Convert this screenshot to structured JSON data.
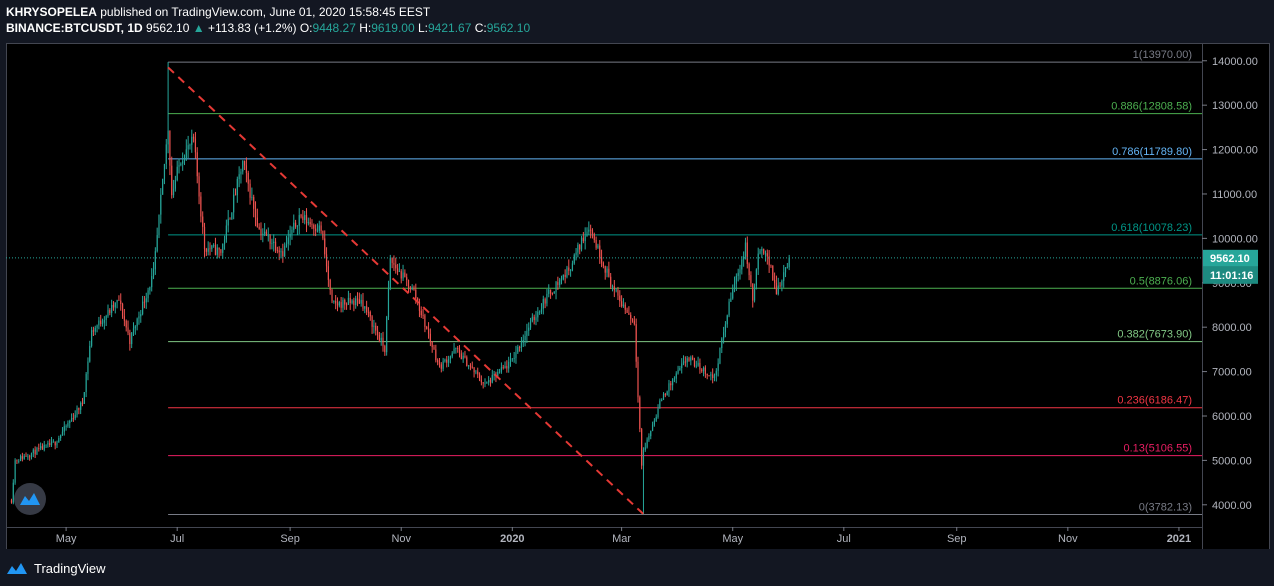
{
  "header": {
    "author": "KHRYSOPELEA",
    "published_text": "published on TradingView.com, June 01, 2020 15:58:45 EEST",
    "symbol": "BINANCE:BTCUSDT, 1D",
    "last_price": "9562.10",
    "change_arrow": "▲",
    "change": "+113.83 (+1.2%)",
    "o_label": "O:",
    "o_value": "9448.27",
    "h_label": "H:",
    "h_value": "9619.00",
    "l_label": "L:",
    "l_value": "9421.67",
    "c_label": "C:",
    "c_value": "9562.10"
  },
  "footer": {
    "brand": "TradingView",
    "logo_icon": "tradingview-logo-icon"
  },
  "colors": {
    "up": "#26a69a",
    "down": "#ef5350",
    "trendline": "#e53935",
    "background": "#000000"
  },
  "chart_data": {
    "type": "candlestick",
    "symbol": "BINANCE:BTCUSDT",
    "interval": "1D",
    "y_axis": {
      "ylim": [
        3500,
        14400
      ],
      "ticks": [
        "4000.00",
        "5000.00",
        "6000.00",
        "7000.00",
        "8000.00",
        "9000.00",
        "10000.00",
        "11000.00",
        "12000.00",
        "13000.00",
        "14000.00"
      ]
    },
    "x_axis": {
      "ticks": [
        {
          "label": "May",
          "date": "2019-05-01"
        },
        {
          "label": "Jul",
          "date": "2019-07-01"
        },
        {
          "label": "Sep",
          "date": "2019-09-01"
        },
        {
          "label": "Nov",
          "date": "2019-11-01"
        },
        {
          "label": "2020",
          "date": "2020-01-01",
          "bold": true
        },
        {
          "label": "Mar",
          "date": "2020-03-01"
        },
        {
          "label": "May",
          "date": "2020-05-01"
        },
        {
          "label": "Jul",
          "date": "2020-07-01"
        },
        {
          "label": "Sep",
          "date": "2020-09-01"
        },
        {
          "label": "Nov",
          "date": "2020-11-01"
        },
        {
          "label": "2021",
          "date": "2021-01-01",
          "bold": true
        }
      ],
      "xlim": [
        "2019-03-29",
        "2021-02-20"
      ]
    },
    "price_path": [
      [
        "2019-04-01",
        4100
      ],
      [
        "2019-04-03",
        5000
      ],
      [
        "2019-04-25",
        5400
      ],
      [
        "2019-05-10",
        6300
      ],
      [
        "2019-05-15",
        7900
      ],
      [
        "2019-05-30",
        8600
      ],
      [
        "2019-06-05",
        7700
      ],
      [
        "2019-06-18",
        9200
      ],
      [
        "2019-06-26",
        12500
      ],
      [
        "2019-06-28",
        11000
      ],
      [
        "2019-07-03",
        11800
      ],
      [
        "2019-07-10",
        12200
      ],
      [
        "2019-07-16",
        9800
      ],
      [
        "2019-07-25",
        9700
      ],
      [
        "2019-08-06",
        11700
      ],
      [
        "2019-08-15",
        10200
      ],
      [
        "2019-08-28",
        9700
      ],
      [
        "2019-09-06",
        10500
      ],
      [
        "2019-09-18",
        10200
      ],
      [
        "2019-09-24",
        8500
      ],
      [
        "2019-10-10",
        8600
      ],
      [
        "2019-10-23",
        7500
      ],
      [
        "2019-10-26",
        9500
      ],
      [
        "2019-11-08",
        8800
      ],
      [
        "2019-11-22",
        7100
      ],
      [
        "2019-12-01",
        7500
      ],
      [
        "2019-12-17",
        6700
      ],
      [
        "2019-12-31",
        7200
      ],
      [
        "2020-01-10",
        8000
      ],
      [
        "2020-01-20",
        8700
      ],
      [
        "2020-02-01",
        9300
      ],
      [
        "2020-02-12",
        10300
      ],
      [
        "2020-02-26",
        8800
      ],
      [
        "2020-03-08",
        8100
      ],
      [
        "2020-03-12",
        4900
      ],
      [
        "2020-03-13",
        5200
      ],
      [
        "2020-03-23",
        6400
      ],
      [
        "2020-04-06",
        7300
      ],
      [
        "2020-04-21",
        6850
      ],
      [
        "2020-04-30",
        8700
      ],
      [
        "2020-05-08",
        9800
      ],
      [
        "2020-05-12",
        8600
      ],
      [
        "2020-05-15",
        9600
      ],
      [
        "2020-05-19",
        9750
      ],
      [
        "2020-05-25",
        8800
      ],
      [
        "2020-06-01",
        9562
      ]
    ],
    "price_extremes": [
      {
        "date": "2019-06-26",
        "high": 13970
      },
      {
        "date": "2020-03-13",
        "low": 3782.13
      }
    ],
    "current_price": {
      "value": 9562.1,
      "label": "9562.10",
      "countdown": "11:01:16"
    },
    "fibonacci": {
      "start_date": "2019-06-26",
      "levels": [
        {
          "ratio": "1",
          "value": 13970.0,
          "label": "1(13970.00)",
          "color": "#787b86"
        },
        {
          "ratio": "0.886",
          "value": 12808.58,
          "label": "0.886(12808.58)",
          "color": "#4caf50"
        },
        {
          "ratio": "0.786",
          "value": 11789.8,
          "label": "0.786(11789.80)",
          "color": "#64b5f6"
        },
        {
          "ratio": "0.618",
          "value": 10078.23,
          "label": "0.618(10078.23)",
          "color": "#009688"
        },
        {
          "ratio": "0.5",
          "value": 8876.06,
          "label": "0.5(8876.06)",
          "color": "#4caf50"
        },
        {
          "ratio": "0.382",
          "value": 7673.9,
          "label": "0.382(7673.90)",
          "color": "#81c784"
        },
        {
          "ratio": "0.236",
          "value": 6186.47,
          "label": "0.236(6186.47)",
          "color": "#f23645"
        },
        {
          "ratio": "0.13",
          "value": 5106.55,
          "label": "0.13(5106.55)",
          "color": "#e91e63"
        },
        {
          "ratio": "0",
          "value": 3782.13,
          "label": "0(3782.13)",
          "color": "#787b86"
        }
      ]
    },
    "trendline": {
      "from": [
        "2019-06-26",
        13850
      ],
      "to": [
        "2020-03-13",
        3790
      ],
      "style": "dashed",
      "color": "#e53935"
    },
    "grid": false,
    "legend": "none"
  }
}
